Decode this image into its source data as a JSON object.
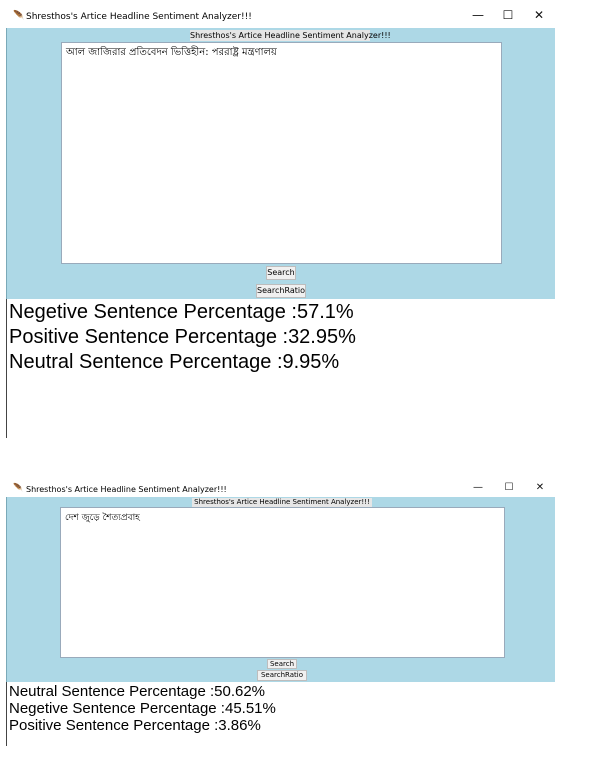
{
  "window1": {
    "title": "Shresthos's Artice Headline Sentiment Analyzer!!!",
    "app_label": "Shresthos's Artice Headline Sentiment Analyzer!!!",
    "text_value": "আল জাজিরার প্রতিবেদন ভিত্তিহীন: পররাষ্ট্র মন্ত্রণালয়",
    "search_label": "Search",
    "search_ratio_label": "SearchRatio",
    "results": [
      "Negetive Sentence Percentage :57.1%",
      "Positive Sentence Percentage :32.95%",
      "Neutral Sentence Percentage :9.95%"
    ]
  },
  "window2": {
    "title": "Shresthos's Artice Headline Sentiment Analyzer!!!",
    "app_label": "Shresthos's Artice Headline Sentiment Analyzer!!!",
    "text_value": "দেশ জুড়ে শৈত্যপ্রবাহ",
    "search_label": "Search",
    "search_ratio_label": "SearchRatio",
    "results": [
      "Neutral Sentence Percentage :50.62%",
      "Negetive Sentence Percentage :45.51%",
      "Positive Sentence Percentage :3.86%"
    ]
  },
  "controls": {
    "minimize": "—",
    "maximize": "☐",
    "close": "✕"
  },
  "colors": {
    "client_bg": "#add8e6",
    "button_bg": "#f0f0f0"
  }
}
